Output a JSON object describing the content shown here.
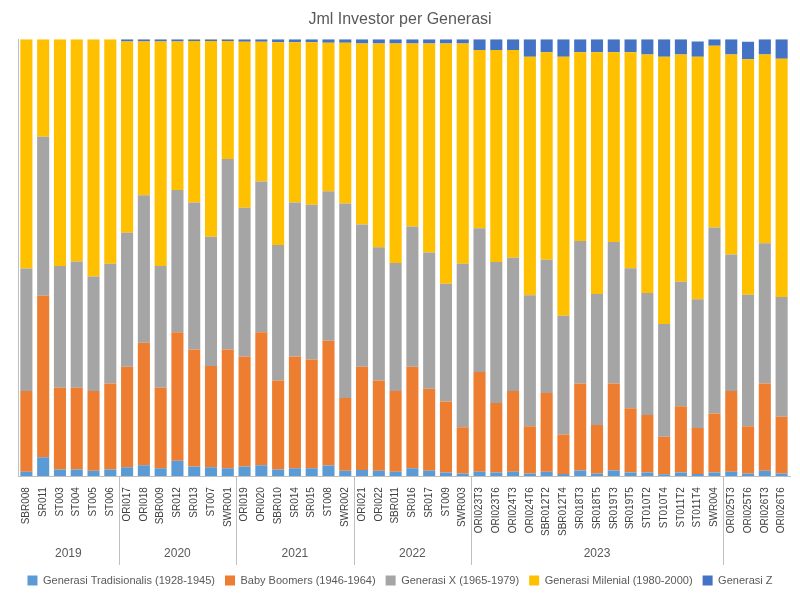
{
  "chart_data": {
    "type": "bar",
    "title": "Jml Investor per Generasi",
    "categories": [
      "SBR008",
      "SR011",
      "ST003",
      "ST004",
      "ST005",
      "ST006",
      "ORI017",
      "ORI018",
      "SBR009",
      "SR012",
      "SR013",
      "ST007",
      "SWR001",
      "ORI019",
      "ORI020",
      "SBR010",
      "SR014",
      "SR015",
      "ST008",
      "SWR002",
      "ORI021",
      "ORI022",
      "SBR011",
      "SR016",
      "SR017",
      "ST009",
      "SWR003",
      "ORI023T3",
      "ORI023T6",
      "ORI024T3",
      "ORI024T6",
      "SBR012T2",
      "SBR012T4",
      "SR018T3",
      "SR018T5",
      "SR019T3",
      "SR019T5",
      "ST010T2",
      "ST010T4",
      "ST011T2",
      "ST011T4",
      "SWR004",
      "ORI025T3",
      "ORI025T6",
      "ORI026T3",
      "ORI026T6"
    ],
    "category_groups": [
      {
        "label": "2019",
        "count": 6
      },
      {
        "label": "2020",
        "count": 7
      },
      {
        "label": "2021",
        "count": 7
      },
      {
        "label": "2022",
        "count": 7
      },
      {
        "label": "2023",
        "count": 15
      }
    ],
    "series": [
      {
        "name": "Generasi Tradisionalis (1928-1945)",
        "color": "#5b9bd5",
        "values": [
          1,
          4.3,
          1.5,
          1.5,
          1.2,
          1.5,
          2,
          2.5,
          1.8,
          3.5,
          2.2,
          2,
          1.8,
          2.2,
          2.5,
          1.5,
          1.8,
          1.8,
          2.4,
          1.2,
          1.4,
          1.2,
          1,
          1.8,
          1.2,
          0.8,
          0.6,
          1,
          0.8,
          1,
          0.6,
          1,
          0.5,
          1.3,
          0.6,
          1.3,
          0.8,
          0.8,
          0.4,
          0.8,
          0.5,
          0.8,
          1,
          0.6,
          1.2,
          0.6
        ]
      },
      {
        "name": "Baby Boomers (1946-1964)",
        "color": "#ed7d31",
        "values": [
          18.5,
          37,
          18.7,
          18.7,
          18.3,
          19.7,
          23,
          28,
          18.4,
          29.4,
          26.8,
          23.2,
          27.2,
          25.2,
          30.4,
          20.4,
          25.6,
          24.9,
          28.6,
          16.7,
          23.6,
          20.7,
          18.5,
          23.2,
          18.8,
          16.3,
          10.6,
          22.8,
          15.9,
          18.5,
          10.8,
          18,
          9,
          19.9,
          11.1,
          19.9,
          14.7,
          13.2,
          8.6,
          15.2,
          10.5,
          13.5,
          18.5,
          10.8,
          20,
          13
        ]
      },
      {
        "name": "Generasi X (1965-1979)",
        "color": "#a5a5a5",
        "values": [
          28,
          36.4,
          27.9,
          28.9,
          26.2,
          27.4,
          30.7,
          33.8,
          27.9,
          32.6,
          33.6,
          29.6,
          43.6,
          34,
          34.5,
          31,
          35.2,
          35.4,
          34.2,
          44.5,
          32.6,
          30.5,
          29.3,
          32.1,
          31.2,
          26.9,
          37.4,
          32.9,
          32.3,
          30.5,
          30,
          30.5,
          27.2,
          32.6,
          30,
          32.4,
          32.1,
          27.9,
          25.8,
          28.5,
          29.5,
          42.6,
          31.2,
          30.1,
          32.1,
          27.4
        ]
      },
      {
        "name": "Generasi Milenial (1980-2000)",
        "color": "#ffc000",
        "values": [
          52.5,
          22.3,
          51.9,
          50.9,
          54.3,
          51.4,
          43.8,
          35.2,
          51.4,
          34,
          37,
          44.8,
          27,
          38,
          32,
          46.4,
          36.7,
          37.2,
          34,
          36.8,
          41.4,
          46.6,
          50.2,
          41.9,
          47.8,
          55,
          50.4,
          40.8,
          48.5,
          47.5,
          54.6,
          47.5,
          59.3,
          43.2,
          55.3,
          43.4,
          49.4,
          54.6,
          61.2,
          52,
          55.5,
          41.6,
          45.8,
          53.9,
          43.2,
          54.5
        ]
      },
      {
        "name": "Generasi Z",
        "color": "#4472c4",
        "values": [
          0,
          0,
          0,
          0,
          0,
          0,
          0.5,
          0.5,
          0.5,
          0.5,
          0.4,
          0.4,
          0.4,
          0.6,
          0.6,
          0.7,
          0.7,
          0.7,
          0.8,
          0.8,
          1,
          1,
          1,
          1,
          1,
          1,
          1,
          2.5,
          2.5,
          2.5,
          4,
          3,
          4,
          3,
          3,
          3,
          3,
          3.5,
          4,
          3.5,
          3.5,
          1.5,
          3.5,
          4,
          3.5,
          4.5
        ]
      }
    ],
    "ylim": [
      0,
      100
    ],
    "stacked": true,
    "grid": false,
    "legend": "bottom",
    "tick_labels": "x"
  }
}
